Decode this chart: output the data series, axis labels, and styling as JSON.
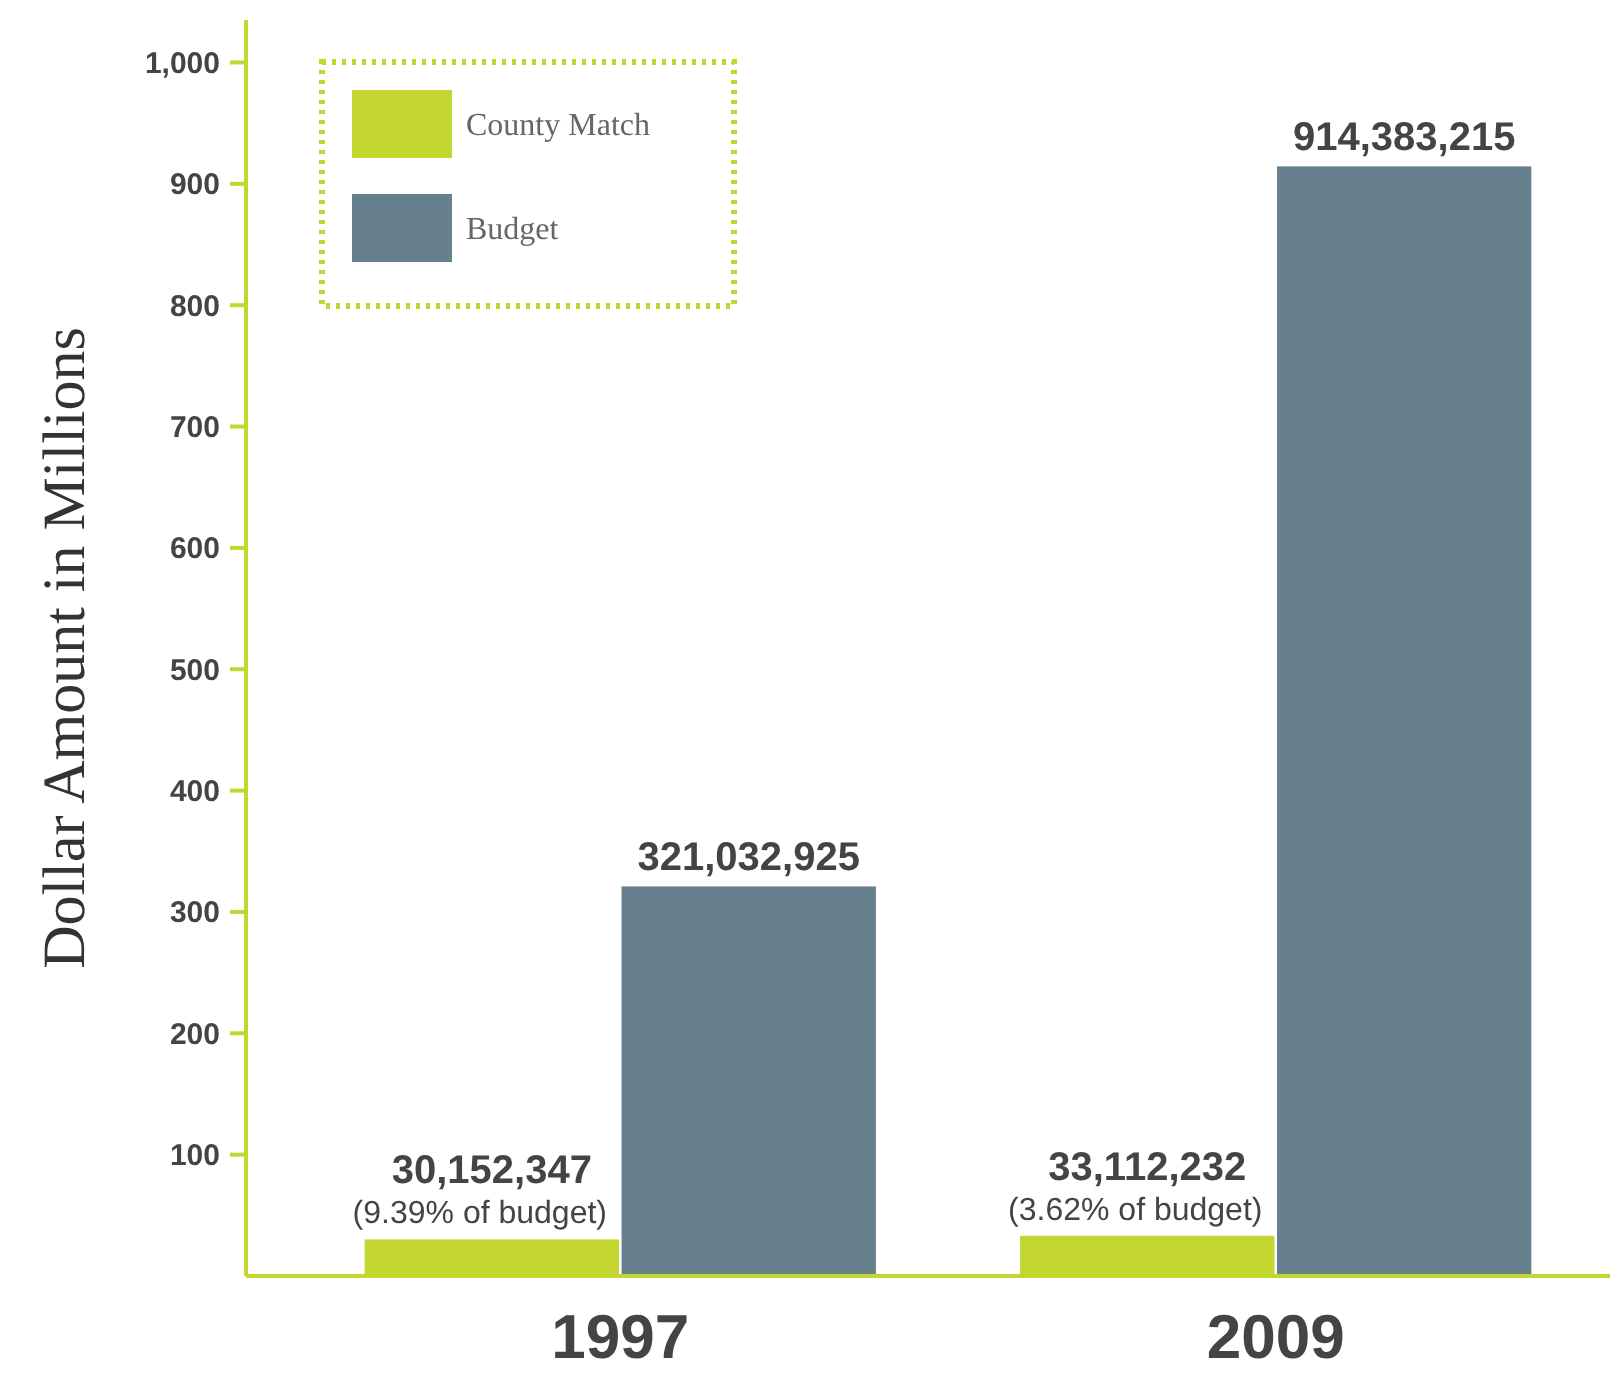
{
  "chart_data": {
    "type": "bar",
    "ylabel": "Dollar Amount in Millions",
    "categories": [
      "1997",
      "2009"
    ],
    "series": [
      {
        "name": "County Match",
        "color": "#c2d62f",
        "values": [
          30.15,
          33.11
        ]
      },
      {
        "name": "Budget",
        "color": "#67808e",
        "values": [
          321.03,
          914.38
        ]
      }
    ],
    "ylim": [
      0,
      1035
    ],
    "yticks": [
      100,
      200,
      300,
      400,
      500,
      600,
      700,
      800,
      900,
      {
        "value": 1000,
        "label": "1,000"
      }
    ],
    "annotations": [
      {
        "text": "30,152,347",
        "x": "1997",
        "y": 30.15
      },
      {
        "text": "(9.39% of budget)",
        "x": "1997",
        "y": 30.15
      },
      {
        "text": "321,032,925",
        "x": "1997",
        "y": 321.03
      },
      {
        "text": "33,112,232",
        "x": "2009",
        "y": 33.11
      },
      {
        "text": "(3.62% of budget)",
        "x": "2009",
        "y": 33.11
      },
      {
        "text": "914,383,215",
        "x": "2009",
        "y": 914.38
      }
    ],
    "grid": false,
    "legend": "top left"
  }
}
